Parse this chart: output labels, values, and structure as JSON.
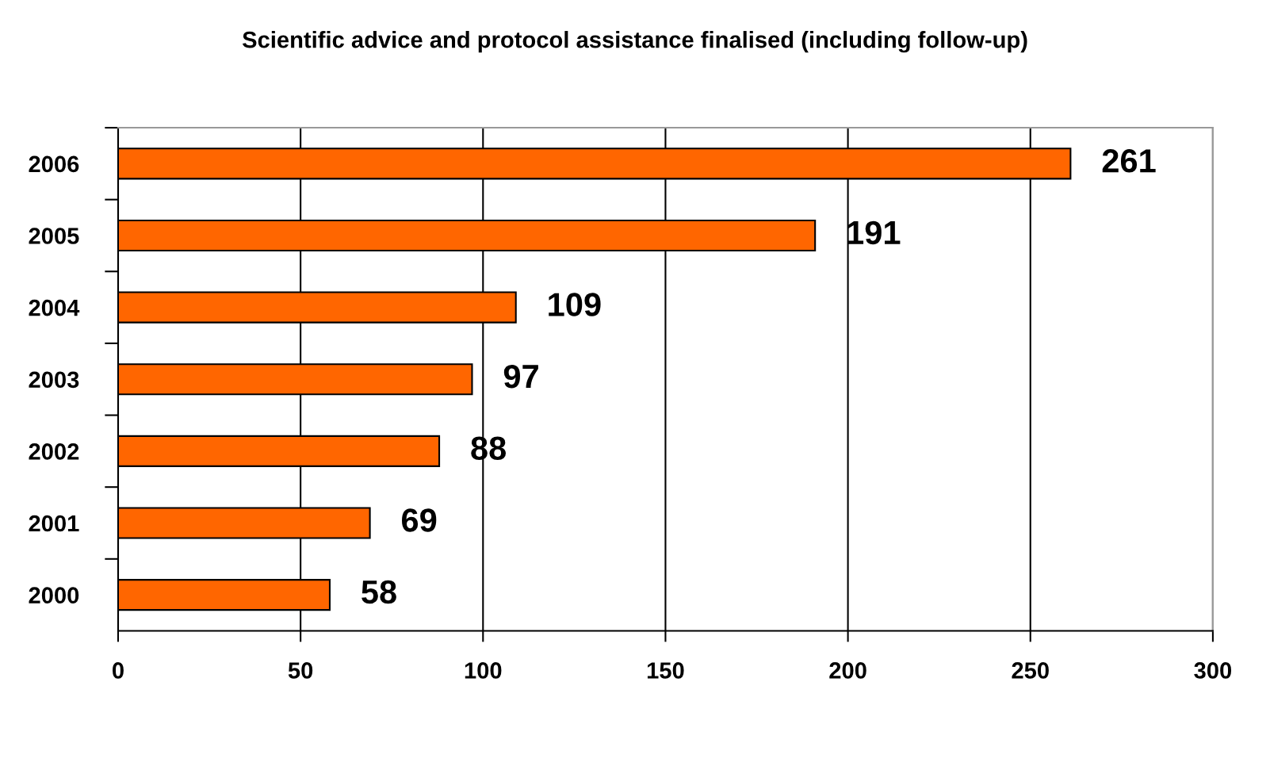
{
  "chart_data": {
    "type": "bar",
    "orientation": "horizontal",
    "title": "Scientific advice and protocol assistance finalised (including follow-up)",
    "categories": [
      "2006",
      "2005",
      "2004",
      "2003",
      "2002",
      "2001",
      "2000"
    ],
    "values": [
      261,
      191,
      109,
      97,
      88,
      69,
      58
    ],
    "color": "#ff6600",
    "xlim": [
      0,
      300
    ],
    "xticks": [
      0,
      50,
      100,
      150,
      200,
      250,
      300
    ],
    "grid": "x",
    "data_labels": true
  }
}
